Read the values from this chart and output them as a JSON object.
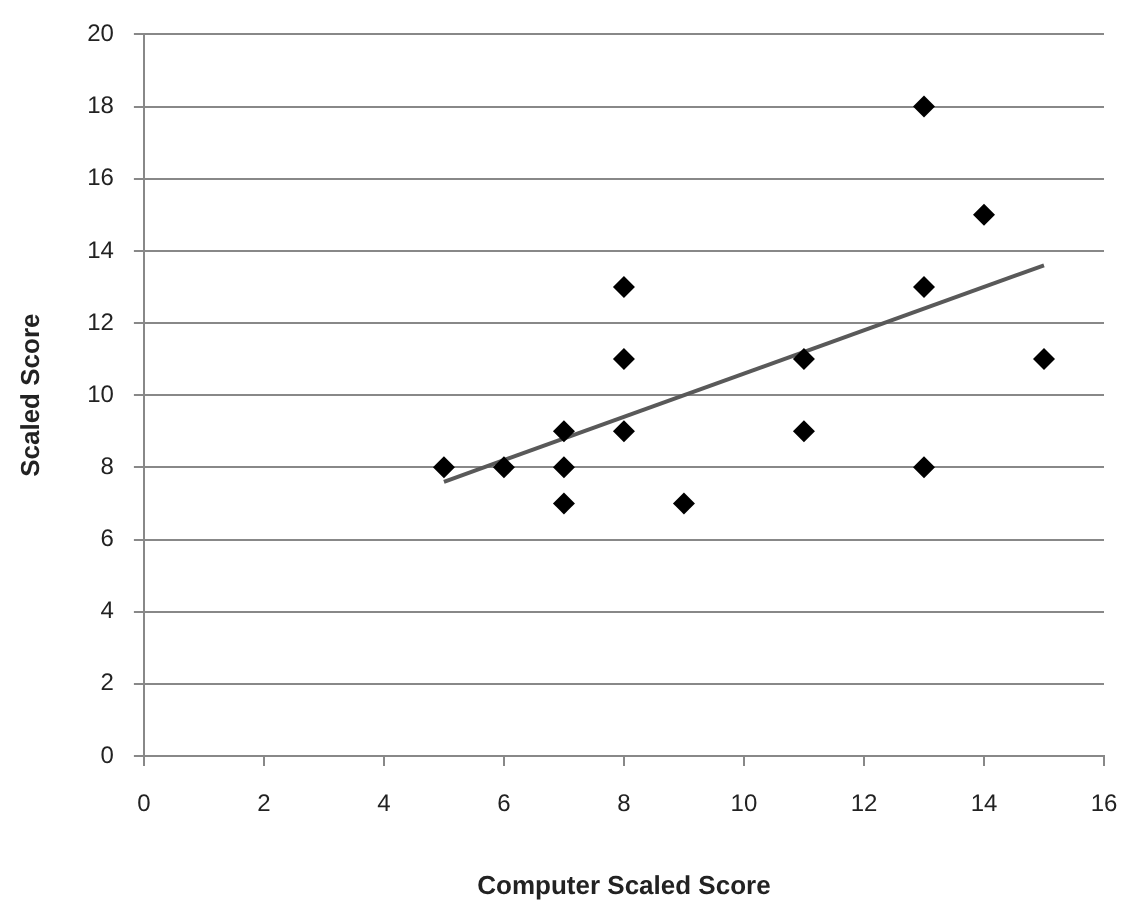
{
  "chart_data": {
    "type": "scatter",
    "xlabel": "Computer Scaled Score",
    "ylabel": "Scaled Score",
    "series": [
      {
        "type": "line",
        "color": "#595959",
        "marker": "none",
        "x": [
          5,
          15
        ],
        "values": [
          7.6,
          13.6
        ]
      },
      {
        "type": "scatter",
        "color": "#000000",
        "marker": "diamond",
        "x": [
          5,
          6,
          7,
          7,
          7,
          8,
          8,
          8,
          9,
          11,
          11,
          13,
          13,
          13,
          14,
          15
        ],
        "values": [
          8,
          8,
          9,
          8,
          7,
          13,
          11,
          9,
          7,
          11,
          9,
          18,
          13,
          8,
          15,
          11
        ]
      }
    ],
    "xlim": [
      0,
      16
    ],
    "xticks": [
      0,
      2,
      4,
      6,
      8,
      10,
      12,
      14,
      16
    ],
    "ylim": [
      0,
      20
    ],
    "yticks": [
      0,
      2,
      4,
      6,
      8,
      10,
      12,
      14,
      16,
      18,
      20
    ],
    "grid": "y",
    "legend": false
  }
}
